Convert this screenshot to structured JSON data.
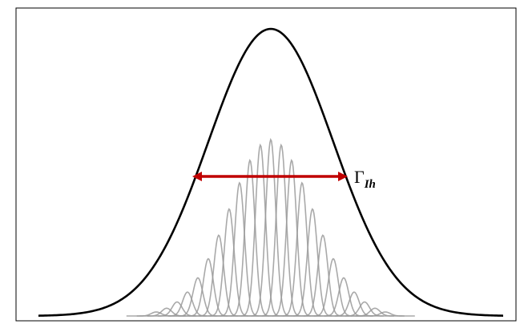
{
  "diagram": {
    "width_label": {
      "symbol": "Γ",
      "subscript": "Ih"
    },
    "colors": {
      "envelope": "#000000",
      "components": "#9a9a9a",
      "arrow": "#c00000"
    },
    "envelope_shape": "gaussian",
    "component_count": 23
  }
}
